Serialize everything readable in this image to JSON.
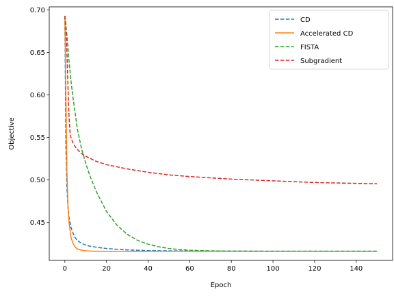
{
  "chart_data": {
    "type": "line",
    "title": "",
    "xlabel": "Epoch",
    "ylabel": "Objective",
    "xlim": [
      -7.5,
      157.5
    ],
    "ylim": [
      0.4055,
      0.7035
    ],
    "xticks": [
      0,
      20,
      40,
      60,
      80,
      100,
      120,
      140
    ],
    "yticks": [
      0.45,
      0.5,
      0.55,
      0.6,
      0.65,
      0.7
    ],
    "ytick_labels": [
      "0.45",
      "0.50",
      "0.55",
      "0.60",
      "0.65",
      "0.70"
    ],
    "grid": false,
    "legend_position": "top-right",
    "series": [
      {
        "name": "CD",
        "color": "#1f77b4",
        "dash": "dashed",
        "x": [
          0,
          0.5,
          1,
          1.5,
          2,
          3,
          4,
          5,
          6,
          8,
          10,
          12,
          15,
          20,
          25,
          30,
          40,
          50,
          60,
          80,
          100,
          120,
          150
        ],
        "y": [
          0.693,
          0.54,
          0.49,
          0.468,
          0.456,
          0.444,
          0.437,
          0.432,
          0.429,
          0.4255,
          0.4235,
          0.4222,
          0.421,
          0.4195,
          0.4185,
          0.4178,
          0.417,
          0.4167,
          0.4165,
          0.4164,
          0.4163,
          0.4163,
          0.4163
        ]
      },
      {
        "name": "Accelerated CD",
        "color": "#ff7f0e",
        "dash": "solid",
        "x": [
          0,
          0.5,
          1,
          1.5,
          2,
          3,
          4,
          5,
          6,
          8,
          10,
          12,
          15,
          20,
          30,
          50,
          80,
          100,
          150
        ],
        "y": [
          0.693,
          0.6,
          0.51,
          0.47,
          0.45,
          0.432,
          0.425,
          0.421,
          0.419,
          0.4175,
          0.4168,
          0.4165,
          0.4163,
          0.4162,
          0.4162,
          0.4162,
          0.4162,
          0.4162,
          0.4162
        ]
      },
      {
        "name": "FISTA",
        "color": "#2ca02c",
        "dash": "dashed",
        "x": [
          0,
          1,
          2,
          3,
          4,
          6,
          8,
          10,
          12,
          15,
          20,
          25,
          30,
          35,
          40,
          45,
          50,
          55,
          60,
          70,
          80,
          90,
          100,
          120,
          150
        ],
        "y": [
          0.693,
          0.67,
          0.64,
          0.615,
          0.595,
          0.56,
          0.537,
          0.52,
          0.505,
          0.487,
          0.463,
          0.447,
          0.436,
          0.429,
          0.4245,
          0.4215,
          0.4195,
          0.4182,
          0.4174,
          0.4167,
          0.4164,
          0.4163,
          0.4163,
          0.4163,
          0.4163
        ]
      },
      {
        "name": "Subgradient",
        "color": "#d62728",
        "dash": "dashed",
        "x": [
          0,
          0.5,
          1,
          1.5,
          2,
          2.5,
          3,
          4,
          5,
          6,
          8,
          10,
          15,
          20,
          30,
          40,
          50,
          60,
          80,
          100,
          120,
          150
        ],
        "y": [
          0.693,
          0.68,
          0.65,
          0.61,
          0.575,
          0.555,
          0.549,
          0.543,
          0.539,
          0.536,
          0.531,
          0.528,
          0.522,
          0.518,
          0.513,
          0.509,
          0.506,
          0.504,
          0.501,
          0.499,
          0.497,
          0.4955
        ]
      }
    ]
  }
}
